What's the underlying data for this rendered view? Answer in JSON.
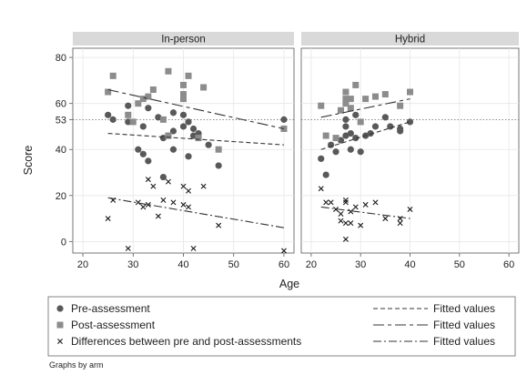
{
  "chart_data": {
    "type": "scatter",
    "ylabel": "Score",
    "xlabel": "Age",
    "x_ticks": [
      20,
      30,
      40,
      50,
      60
    ],
    "y_ticks": [
      0,
      20,
      40,
      53,
      60,
      80
    ],
    "xlim": [
      18,
      62
    ],
    "ylim": [
      -5,
      84
    ],
    "reference_line_y": 53,
    "grid": true,
    "legend_position": "bottom",
    "note": "Graphs by arm",
    "legend": [
      {
        "label": "Pre-assessment",
        "marker": "circle"
      },
      {
        "label": "Post-assessment",
        "marker": "square"
      },
      {
        "label": "Differences between pre and post-assessments",
        "marker": "x"
      },
      {
        "label": "Fitted values",
        "dash": "short"
      },
      {
        "label": "Fitted values",
        "dash": "long-short"
      },
      {
        "label": "Fitted values",
        "dash": "dash-dot"
      }
    ],
    "panels": [
      {
        "name": "In-person",
        "series": [
          {
            "marker": "circle",
            "points": [
              [
                25,
                55
              ],
              [
                26,
                53
              ],
              [
                29,
                59
              ],
              [
                29,
                52
              ],
              [
                31,
                40
              ],
              [
                32,
                38
              ],
              [
                32,
                50
              ],
              [
                33,
                35
              ],
              [
                33,
                58
              ],
              [
                35,
                54
              ],
              [
                36,
                45
              ],
              [
                36,
                28
              ],
              [
                37,
                46
              ],
              [
                38,
                56
              ],
              [
                38,
                48
              ],
              [
                38,
                40
              ],
              [
                40,
                50
              ],
              [
                40,
                55
              ],
              [
                41,
                37
              ],
              [
                41,
                52
              ],
              [
                42,
                46
              ],
              [
                42,
                49
              ],
              [
                43,
                47
              ],
              [
                45,
                42
              ],
              [
                47,
                33
              ],
              [
                60,
                53
              ]
            ]
          },
          {
            "marker": "square",
            "points": [
              [
                25,
                65
              ],
              [
                26,
                72
              ],
              [
                29,
                55
              ],
              [
                30,
                52
              ],
              [
                31,
                60
              ],
              [
                32,
                62
              ],
              [
                33,
                63
              ],
              [
                34,
                66
              ],
              [
                36,
                53
              ],
              [
                37,
                46
              ],
              [
                37,
                74
              ],
              [
                40,
                68
              ],
              [
                40,
                62
              ],
              [
                40,
                64
              ],
              [
                41,
                72
              ],
              [
                43,
                45
              ],
              [
                44,
                67
              ],
              [
                47,
                40
              ],
              [
                60,
                49
              ]
            ]
          },
          {
            "marker": "x",
            "points": [
              [
                25,
                10
              ],
              [
                26,
                18
              ],
              [
                29,
                -3
              ],
              [
                31,
                17
              ],
              [
                32,
                15
              ],
              [
                33,
                27
              ],
              [
                33,
                16
              ],
              [
                34,
                24
              ],
              [
                35,
                11
              ],
              [
                36,
                18
              ],
              [
                37,
                26
              ],
              [
                38,
                17
              ],
              [
                40,
                16
              ],
              [
                40,
                24
              ],
              [
                41,
                15
              ],
              [
                41,
                22
              ],
              [
                42,
                -3
              ],
              [
                44,
                24
              ],
              [
                47,
                7
              ],
              [
                60,
                -4
              ]
            ]
          }
        ],
        "fitted_lines": [
          {
            "dash": "short",
            "from": [
              25,
              47
            ],
            "to": [
              60,
              42
            ]
          },
          {
            "dash": "long-short",
            "from": [
              25,
              66
            ],
            "to": [
              60,
              49
            ]
          },
          {
            "dash": "dash-dot",
            "from": [
              25,
              19
            ],
            "to": [
              60,
              6
            ]
          }
        ]
      },
      {
        "name": "Hybrid",
        "series": [
          {
            "marker": "circle",
            "points": [
              [
                22,
                36
              ],
              [
                23,
                29
              ],
              [
                24,
                42
              ],
              [
                25,
                39
              ],
              [
                26,
                44
              ],
              [
                27,
                46
              ],
              [
                27,
                50
              ],
              [
                27,
                53
              ],
              [
                28,
                40
              ],
              [
                28,
                47
              ],
              [
                29,
                45
              ],
              [
                29,
                55
              ],
              [
                30,
                39
              ],
              [
                31,
                46
              ],
              [
                32,
                47
              ],
              [
                33,
                50
              ],
              [
                35,
                54
              ],
              [
                36,
                50
              ],
              [
                38,
                48
              ],
              [
                38,
                49
              ],
              [
                40,
                52
              ]
            ]
          },
          {
            "marker": "square",
            "points": [
              [
                22,
                59
              ],
              [
                23,
                46
              ],
              [
                25,
                45
              ],
              [
                26,
                57
              ],
              [
                27,
                62
              ],
              [
                27,
                65
              ],
              [
                27,
                60
              ],
              [
                28,
                58
              ],
              [
                28,
                62
              ],
              [
                29,
                68
              ],
              [
                30,
                52
              ],
              [
                31,
                62
              ],
              [
                33,
                63
              ],
              [
                35,
                64
              ],
              [
                38,
                59
              ],
              [
                40,
                65
              ]
            ]
          },
          {
            "marker": "x",
            "points": [
              [
                22,
                23
              ],
              [
                23,
                17
              ],
              [
                24,
                17
              ],
              [
                25,
                14
              ],
              [
                26,
                12
              ],
              [
                26,
                9
              ],
              [
                27,
                18
              ],
              [
                27,
                17
              ],
              [
                27,
                8
              ],
              [
                27,
                1
              ],
              [
                28,
                8
              ],
              [
                28,
                13
              ],
              [
                29,
                15
              ],
              [
                30,
                7
              ],
              [
                31,
                16
              ],
              [
                33,
                17
              ],
              [
                35,
                10
              ],
              [
                38,
                10
              ],
              [
                38,
                8
              ],
              [
                40,
                14
              ]
            ]
          }
        ],
        "fitted_lines": [
          {
            "dash": "short",
            "from": [
              22,
              40
            ],
            "to": [
              40,
              52
            ]
          },
          {
            "dash": "long-short",
            "from": [
              22,
              54
            ],
            "to": [
              40,
              62
            ]
          },
          {
            "dash": "dash-dot",
            "from": [
              22,
              15
            ],
            "to": [
              40,
              10
            ]
          }
        ]
      }
    ]
  },
  "colors": {
    "pre": "#595959",
    "post": "#8c8c8c",
    "diff": "#1a1a1a",
    "strip": "#d9d9d9",
    "grid": "#e6e6e6",
    "refline": "#666666"
  }
}
